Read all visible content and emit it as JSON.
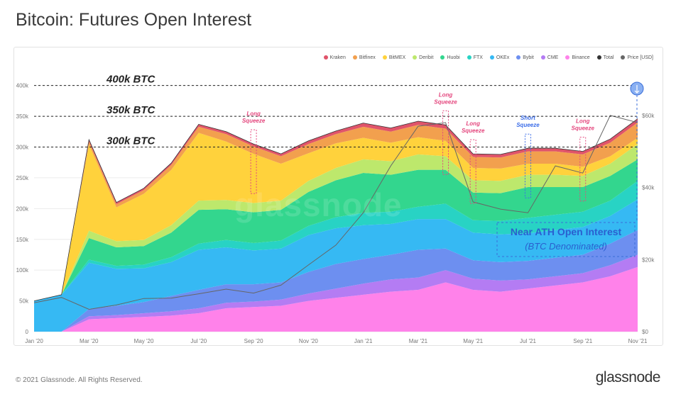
{
  "title": "Bitcoin: Futures Open Interest",
  "footer": {
    "copyright": "© 2021 Glassnode. All Rights Reserved.",
    "logo": "glassnode"
  },
  "watermark": "glassnode",
  "colors": {
    "Kraken": "#e0546a",
    "Bitfinex": "#f2a04e",
    "BitMEX": "#ffd23c",
    "Deribit": "#bde86c",
    "Huobi": "#33d68e",
    "FTX": "#28d3c4",
    "OKEx": "#36b9f3",
    "Bybit": "#6d8ff0",
    "CME": "#b47cf3",
    "Binance": "#ff82ea",
    "Total": "#333333",
    "Price [USD]": "#666666"
  },
  "chart_data": {
    "type": "area",
    "stacked": true,
    "x_tick_labels": [
      "Jan '20",
      "Mar '20",
      "May '20",
      "Jul '20",
      "Sep '20",
      "Nov '20",
      "Jan '21",
      "Mar '21",
      "May '21",
      "Jul '21",
      "Sep '21",
      "Nov '21"
    ],
    "y_tick_labels": [
      "0",
      "50k",
      "100k",
      "150k",
      "200k",
      "250k",
      "300k",
      "350k",
      "400k"
    ],
    "y2_tick_labels": [
      "$0",
      "$20k",
      "$40k",
      "$60k"
    ],
    "ylim": [
      0,
      410000
    ],
    "y2lim": [
      0,
      70000
    ],
    "legend": [
      "Kraken",
      "Bitfinex",
      "BitMEX",
      "Deribit",
      "Huobi",
      "FTX",
      "OKEx",
      "Bybit",
      "CME",
      "Binance",
      "Total",
      "Price [USD]"
    ],
    "legend_placement": "top-right",
    "x": [
      "2020-01",
      "2020-02",
      "2020-03",
      "2020-04",
      "2020-05",
      "2020-06",
      "2020-07",
      "2020-08",
      "2020-09",
      "2020-10",
      "2020-11",
      "2020-12",
      "2021-01",
      "2021-02",
      "2021-03",
      "2021-04",
      "2021-05",
      "2021-06",
      "2021-07",
      "2021-08",
      "2021-09",
      "2021-10",
      "2021-11"
    ],
    "series": [
      {
        "name": "Binance",
        "values": [
          0,
          0,
          20000,
          22000,
          24000,
          26000,
          30000,
          38000,
          40000,
          42000,
          50000,
          55000,
          60000,
          65000,
          68000,
          80000,
          68000,
          65000,
          70000,
          75000,
          80000,
          90000,
          105000
        ]
      },
      {
        "name": "CME",
        "values": [
          0,
          0,
          5000,
          5000,
          6000,
          7000,
          8000,
          9000,
          9000,
          10000,
          12000,
          15000,
          18000,
          20000,
          20000,
          20000,
          18000,
          18000,
          15000,
          15000,
          15000,
          18000,
          20000
        ]
      },
      {
        "name": "Bybit",
        "values": [
          0,
          0,
          12000,
          15000,
          18000,
          25000,
          30000,
          30000,
          28000,
          28000,
          35000,
          40000,
          40000,
          40000,
          45000,
          35000,
          30000,
          30000,
          30000,
          30000,
          30000,
          35000,
          40000
        ]
      },
      {
        "name": "OKEx",
        "values": [
          50000,
          60000,
          75000,
          60000,
          55000,
          55000,
          65000,
          60000,
          55000,
          55000,
          60000,
          58000,
          55000,
          50000,
          50000,
          48000,
          45000,
          45000,
          45000,
          45000,
          45000,
          45000,
          50000
        ]
      },
      {
        "name": "FTX",
        "values": [
          0,
          0,
          5000,
          5000,
          6000,
          8000,
          10000,
          12000,
          12000,
          13000,
          15000,
          18000,
          20000,
          20000,
          20000,
          25000,
          20000,
          22000,
          25000,
          25000,
          25000,
          25000,
          30000
        ]
      },
      {
        "name": "Huobi",
        "values": [
          0,
          0,
          35000,
          30000,
          30000,
          40000,
          55000,
          50000,
          50000,
          50000,
          55000,
          60000,
          65000,
          60000,
          60000,
          55000,
          45000,
          45000,
          50000,
          45000,
          40000,
          40000,
          35000
        ]
      },
      {
        "name": "Deribit",
        "values": [
          0,
          0,
          12000,
          10000,
          10000,
          12000,
          15000,
          15000,
          15000,
          15000,
          18000,
          20000,
          22000,
          22000,
          25000,
          22000,
          20000,
          20000,
          20000,
          20000,
          18000,
          20000,
          25000
        ]
      },
      {
        "name": "BitMEX",
        "values": [
          0,
          0,
          140000,
          55000,
          75000,
          90000,
          110000,
          95000,
          80000,
          60000,
          45000,
          40000,
          35000,
          30000,
          28000,
          25000,
          20000,
          20000,
          18000,
          18000,
          15000,
          12000,
          10000
        ]
      },
      {
        "name": "Bitfinex",
        "values": [
          0,
          0,
          5000,
          5000,
          6000,
          8000,
          10000,
          12000,
          12000,
          12000,
          15000,
          15000,
          18000,
          18000,
          20000,
          20000,
          18000,
          18000,
          20000,
          20000,
          20000,
          22000,
          25000
        ]
      },
      {
        "name": "Kraken",
        "values": [
          0,
          0,
          3000,
          3000,
          3000,
          3000,
          4000,
          4000,
          4000,
          4000,
          5000,
          5000,
          6000,
          6000,
          6000,
          6000,
          5000,
          5000,
          5000,
          5000,
          5000,
          6000,
          6000
        ]
      }
    ],
    "price_usd": [
      8000,
      9500,
      6200,
      7400,
      9200,
      9300,
      10500,
      11800,
      10700,
      12900,
      18500,
      24000,
      33000,
      46000,
      57000,
      58000,
      36000,
      34000,
      33000,
      46000,
      44000,
      60000,
      58000
    ],
    "annotations": {
      "reference_lines": [
        "400k BTC",
        "350k BTC",
        "300k BTC"
      ],
      "labels": [
        {
          "text": "Long\nSqueeze",
          "x": "2020-09"
        },
        {
          "text": "Long\nSqueeze",
          "x": "2021-04"
        },
        {
          "text": "Long\nSqueeze",
          "x": "2021-05"
        },
        {
          "text": "Short\nSqueeze",
          "x": "2021-07"
        },
        {
          "text": "Long\nSqueeze",
          "x": "2021-09"
        }
      ],
      "callout_title": "Near ATH Open Interest",
      "callout_subtitle": "(BTC Denominated)"
    }
  }
}
